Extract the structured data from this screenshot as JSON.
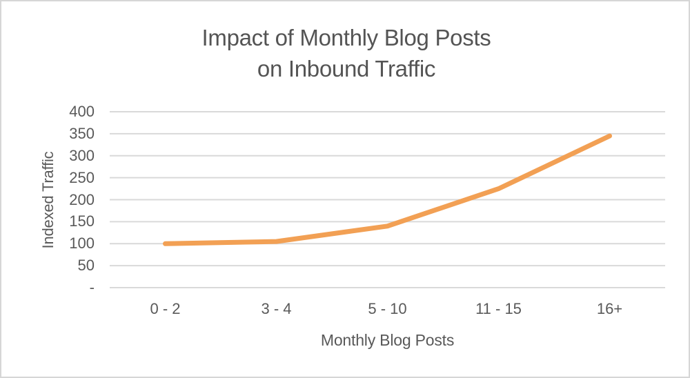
{
  "chart": {
    "title_line1": "Impact of Monthly Blog Posts",
    "title_line2": "on Inbound Traffic",
    "x_axis_title": "Monthly Blog Posts",
    "y_axis_title": "Indexed Traffic"
  },
  "chart_data": {
    "type": "line",
    "title": "Impact of Monthly Blog Posts on Inbound Traffic",
    "categories": [
      "0 - 2",
      "3 - 4",
      "5 - 10",
      "11 - 15",
      "16+"
    ],
    "series": [
      {
        "name": "Indexed Traffic",
        "values": [
          100,
          105,
          140,
          225,
          345
        ]
      }
    ],
    "xlabel": "Monthly Blog Posts",
    "ylabel": "Indexed Traffic",
    "ylim": [
      0,
      400
    ],
    "yticks": [
      {
        "label": "400",
        "v": 400
      },
      {
        "label": "350",
        "v": 350
      },
      {
        "label": "300",
        "v": 300
      },
      {
        "label": "250",
        "v": 250
      },
      {
        "label": "200",
        "v": 200
      },
      {
        "label": "150",
        "v": 150
      },
      {
        "label": "100",
        "v": 100
      },
      {
        "label": "50",
        "v": 50
      },
      {
        "label": "-",
        "v": 0
      }
    ],
    "grid": true,
    "legend": "none",
    "line_color": "#F2A054",
    "line_width": 7,
    "gridline_color": "#D9D9D9"
  },
  "colors": {
    "background": "#FFFFFF",
    "border": "#D6D6D6",
    "title_text": "#545454",
    "axis_text": "#595959"
  }
}
